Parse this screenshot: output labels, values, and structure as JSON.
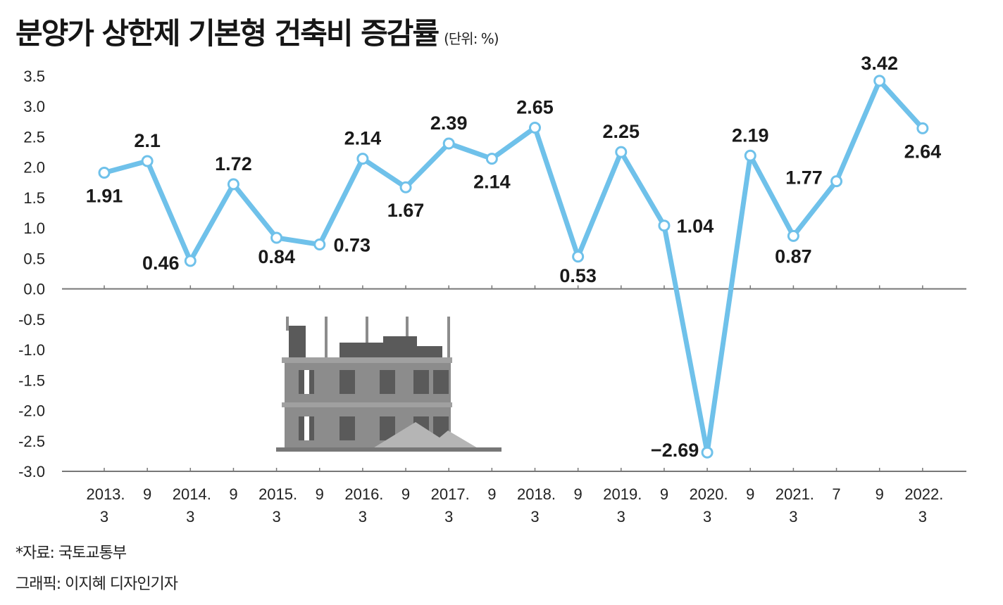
{
  "header": {
    "title": "분양가 상한제 기본형 건축비 증감률",
    "unit": "(단위: %)"
  },
  "footer": {
    "source": "*자료: 국토교통부",
    "credit": "그래픽: 이지혜 디자인기자"
  },
  "colors": {
    "line": "#6fc1ea",
    "axis": "#777777",
    "building_dark": "#5a5a5a",
    "building_light": "#8c8c8c"
  },
  "chart_data": {
    "type": "line",
    "title": "분양가 상한제 기본형 건축비 증감률",
    "unit": "(단위: %)",
    "ylim": [
      -3.0,
      3.5
    ],
    "yticks": [
      "3.5",
      "3.0",
      "2.5",
      "2.0",
      "1.5",
      "1.0",
      "0.5",
      "0.0",
      "-0.5",
      "-1.0",
      "-1.5",
      "-2.0",
      "-2.5",
      "-3.0"
    ],
    "categories": [
      [
        "2013.",
        "3"
      ],
      [
        "9",
        ""
      ],
      [
        "2014.",
        "3"
      ],
      [
        "9",
        ""
      ],
      [
        "2015.",
        "3"
      ],
      [
        "9",
        ""
      ],
      [
        "2016.",
        "3"
      ],
      [
        "9",
        ""
      ],
      [
        "2017.",
        "3"
      ],
      [
        "9",
        ""
      ],
      [
        "2018.",
        "3"
      ],
      [
        "9",
        ""
      ],
      [
        "2019.",
        "3"
      ],
      [
        "9",
        ""
      ],
      [
        "2020.",
        "3"
      ],
      [
        "9",
        ""
      ],
      [
        "2021.",
        "3"
      ],
      [
        "7",
        ""
      ],
      [
        "9",
        ""
      ],
      [
        "2022.",
        "3"
      ]
    ],
    "values": [
      1.91,
      2.1,
      0.46,
      1.72,
      0.84,
      0.73,
      2.14,
      1.67,
      2.39,
      2.14,
      2.65,
      0.53,
      2.25,
      1.04,
      -2.69,
      2.19,
      0.87,
      1.77,
      3.42,
      2.64
    ],
    "labels": [
      "1.91",
      "2.1",
      "0.46",
      "1.72",
      "0.84",
      "0.73",
      "2.14",
      "1.67",
      "2.39",
      "2.14",
      "2.65",
      "0.53",
      "2.25",
      "1.04",
      "−2.69",
      "2.19",
      "0.87",
      "1.77",
      "3.42",
      "2.64"
    ],
    "grid": false,
    "legend": "none"
  }
}
